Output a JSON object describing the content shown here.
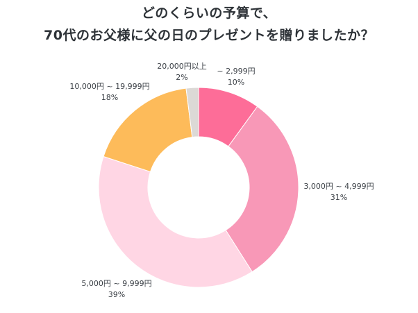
{
  "title": {
    "line1": "どのくらいの予算で、",
    "line2": "70代のお父様に父の日のプレゼントを贈りましたか？"
  },
  "chart_data": {
    "type": "pie",
    "donut": true,
    "categories": [
      "~ 2,999円",
      "3,000円 ~ 4,999円",
      "5,000円 ~ 9,999円",
      "10,000円 ~ 19,999円",
      "20,000円以上"
    ],
    "values": [
      10,
      31,
      39,
      18,
      2
    ],
    "value_labels": [
      "10%",
      "31%",
      "39%",
      "18%",
      "2%"
    ],
    "colors": [
      "#fd6d98",
      "#f898b7",
      "#ffd6e4",
      "#fdbb5a",
      "#dcd9d6"
    ]
  }
}
